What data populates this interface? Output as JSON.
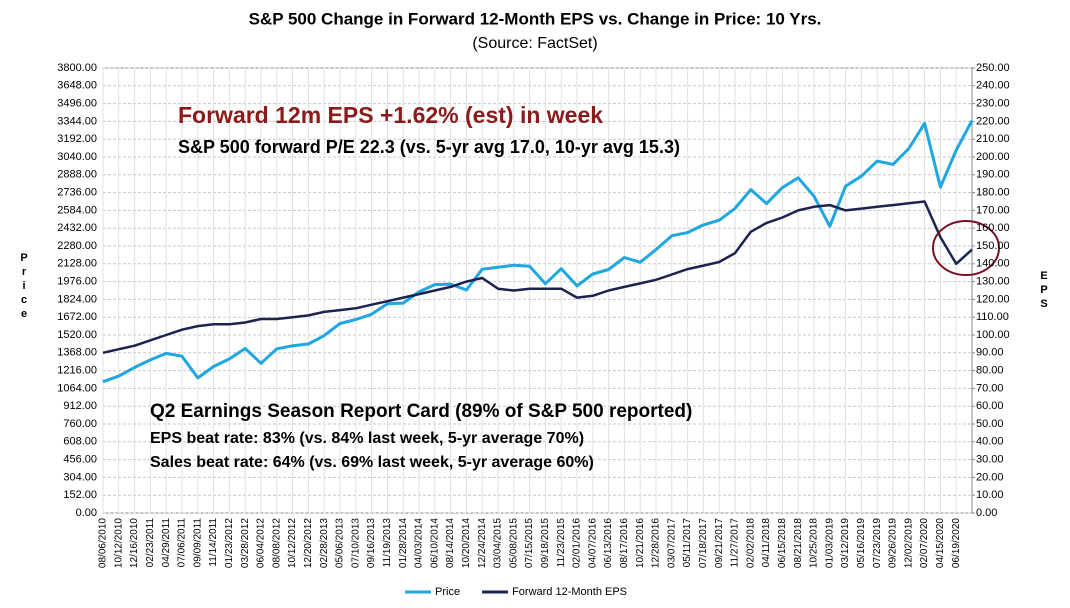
{
  "chart_data": {
    "type": "line",
    "title": "S&P 500 Change in Forward 12-Month EPS vs. Change in Price: 10 Yrs.",
    "subtitle": "(Source: FactSet)",
    "y_label": "Price",
    "y2_label": "EPS",
    "annotations": [
      "Forward 12m EPS +1.62% (est) in week",
      "S&P 500 forward P/E 22.3 (vs. 5-yr avg 17.0, 10-yr avg 15.3)",
      "Q2 Earnings Season Report Card (89% of S&P 500 reported)",
      "EPS beat rate: 83% (vs. 84% last week, 5-yr average 70%)",
      "Sales beat rate: 64% (vs. 69% last week, 5-yr average 60%)"
    ],
    "categories": [
      "08/06/2010",
      "10/12/2010",
      "12/16/2010",
      "02/23/2011",
      "04/29/2011",
      "07/06/2011",
      "09/09/2011",
      "11/14/2011",
      "01/23/2012",
      "03/28/2012",
      "06/04/2012",
      "08/08/2012",
      "10/12/2012",
      "12/20/2012",
      "02/28/2013",
      "05/06/2013",
      "07/10/2013",
      "09/16/2013",
      "11/19/2013",
      "01/28/2014",
      "04/03/2014",
      "06/10/2014",
      "08/14/2014",
      "10/20/2014",
      "12/24/2014",
      "03/04/2015",
      "05/08/2015",
      "07/15/2015",
      "09/18/2015",
      "11/23/2015",
      "02/01/2016",
      "04/07/2016",
      "06/13/2016",
      "08/17/2016",
      "10/21/2016",
      "12/28/2016",
      "03/07/2017",
      "05/11/2017",
      "07/18/2017",
      "09/21/2017",
      "11/27/2017",
      "02/02/2018",
      "04/11/2018",
      "06/15/2018",
      "08/21/2018",
      "10/25/2018",
      "01/03/2019",
      "03/12/2019",
      "05/16/2019",
      "07/23/2019",
      "09/26/2019",
      "12/02/2019",
      "02/07/2020",
      "04/15/2020",
      "06/19/2020",
      null
    ],
    "series": [
      {
        "name": "Price",
        "color": "#1ea7e1",
        "values": [
          1121,
          1169,
          1243,
          1307,
          1363,
          1339,
          1154,
          1251,
          1316,
          1405,
          1278,
          1402,
          1428,
          1443,
          1515,
          1618,
          1652,
          1697,
          1787,
          1792,
          1888,
          1950,
          1955,
          1904,
          2082,
          2098,
          2116,
          2107,
          1958,
          2086,
          1939,
          2041,
          2079,
          2182,
          2141,
          2249,
          2368,
          2394,
          2460,
          2500,
          2601,
          2762,
          2642,
          2779,
          2862,
          2705,
          2448,
          2791,
          2876,
          3005,
          2977,
          3113,
          3327,
          2783,
          3098,
          3351
        ]
      },
      {
        "name": "Forward 12-Month EPS",
        "color": "#1b2450",
        "axis": "y2",
        "values": [
          90,
          92,
          94,
          97,
          100,
          103,
          105,
          106,
          106,
          107,
          109,
          109,
          110,
          111,
          113,
          114,
          115,
          117,
          119,
          121,
          123,
          125,
          127,
          130,
          132,
          126,
          125,
          126,
          126,
          126,
          121,
          122,
          125,
          127,
          129,
          131,
          134,
          137,
          139,
          141,
          146,
          158,
          163,
          166,
          170,
          172,
          173,
          170,
          171,
          172,
          173,
          174,
          175,
          155,
          140,
          148
        ]
      }
    ],
    "ylim": [
      0,
      3800
    ],
    "yticks": [
      {
        "value": 0,
        "label": "0.00"
      },
      {
        "value": 152,
        "label": "152.00"
      },
      {
        "value": 304,
        "label": "304.00"
      },
      {
        "value": 456,
        "label": "456.00"
      },
      {
        "value": 608,
        "label": "608.00"
      },
      {
        "value": 760,
        "label": "760.00"
      },
      {
        "value": 912,
        "label": "912.00"
      },
      {
        "value": 1064,
        "label": "1064.00"
      },
      {
        "value": 1216,
        "label": "1216.00"
      },
      {
        "value": 1368,
        "label": "1368.00"
      },
      {
        "value": 1520,
        "label": "1520.00"
      },
      {
        "value": 1672,
        "label": "1672.00"
      },
      {
        "value": 1824,
        "label": "1824.00"
      },
      {
        "value": 1976,
        "label": "1976.00"
      },
      {
        "value": 2128,
        "label": "2128.00"
      },
      {
        "value": 2280,
        "label": "2280.00"
      },
      {
        "value": 2432,
        "label": "2432.00"
      },
      {
        "value": 2584,
        "label": "2584.00"
      },
      {
        "value": 2736,
        "label": "2736.00"
      },
      {
        "value": 2888,
        "label": "2888.00"
      },
      {
        "value": 3040,
        "label": "3040.00"
      },
      {
        "value": 3192,
        "label": "3192.00"
      },
      {
        "value": 3344,
        "label": "3344.00"
      },
      {
        "value": 3496,
        "label": "3496.00"
      },
      {
        "value": 3648,
        "label": "3648.00"
      },
      {
        "value": 3800,
        "label": "3800.00"
      }
    ],
    "y2lim": [
      0,
      250
    ],
    "y2ticks": [
      {
        "value": 0,
        "label": "0.00"
      },
      {
        "value": 10,
        "label": "10.00"
      },
      {
        "value": 20,
        "label": "20.00"
      },
      {
        "value": 30,
        "label": "30.00"
      },
      {
        "value": 40,
        "label": "40.00"
      },
      {
        "value": 50,
        "label": "50.00"
      },
      {
        "value": 60,
        "label": "60.00"
      },
      {
        "value": 70,
        "label": "70.00"
      },
      {
        "value": 80,
        "label": "80.00"
      },
      {
        "value": 90,
        "label": "90.00"
      },
      {
        "value": 100,
        "label": "100.00"
      },
      {
        "value": 110,
        "label": "110.00"
      },
      {
        "value": 120,
        "label": "120.00"
      },
      {
        "value": 130,
        "label": "130.00"
      },
      {
        "value": 140,
        "label": "140.00"
      },
      {
        "value": 150,
        "label": "150.00"
      },
      {
        "value": 160,
        "label": "160.00"
      },
      {
        "value": 170,
        "label": "170.00"
      },
      {
        "value": 180,
        "label": "180.00"
      },
      {
        "value": 190,
        "label": "190.00"
      },
      {
        "value": 200,
        "label": "200.00"
      },
      {
        "value": 210,
        "label": "210.00"
      },
      {
        "value": 220,
        "label": "220.00"
      },
      {
        "value": 230,
        "label": "230.00"
      },
      {
        "value": 240,
        "label": "240.00"
      },
      {
        "value": 250,
        "label": "250.00"
      }
    ],
    "grid": true
  }
}
